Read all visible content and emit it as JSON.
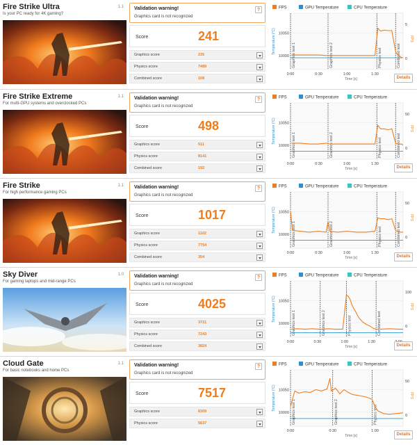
{
  "common": {
    "warning_title": "Validation warning!",
    "warning_text": "Graphics card is not recognized",
    "help_symbol": "?",
    "score_label": "Score",
    "details_label": "Details",
    "legend": [
      {
        "label": "FPS",
        "color": "#f07d1a"
      },
      {
        "label": "GPU Temperature",
        "color": "#2a8fd6"
      },
      {
        "label": "CPU Temperature",
        "color": "#2ec9c0"
      }
    ],
    "left_axis_label": "Temperature (°C)",
    "right_axis_label": "FPS",
    "x_axis_label": "Time [s]",
    "accent": "#f07d1a"
  },
  "benchmarks": [
    {
      "title": "Fire Strike Ultra",
      "subtitle": "Is your PC ready for 4K gaming?",
      "version": "1.1",
      "art": "fire",
      "score": "241",
      "subscores": [
        {
          "label": "Graphics score",
          "value": "235"
        },
        {
          "label": "Physics score",
          "value": "7489"
        },
        {
          "label": "Combined score",
          "value": "108"
        }
      ],
      "chart_data": {
        "type": "line",
        "x_ticks": [
          "0:00",
          "0:30",
          "1:00",
          "1:30"
        ],
        "x_range": [
          0,
          120
        ],
        "left_ticks": [
          "10050",
          "10000"
        ],
        "right_ticks": [
          "5",
          "0"
        ],
        "sections": [
          {
            "label": "Graphics test 1",
            "at": 0
          },
          {
            "label": "Graphics test 2",
            "at": 40
          },
          {
            "label": "Physics test",
            "at": 92
          },
          {
            "label": "Combined test",
            "at": 112
          }
        ],
        "fps_ylim": [
          -2,
          10
        ],
        "fps": [
          [
            1,
            1.1
          ],
          [
            10,
            1.1
          ],
          [
            20,
            1.1
          ],
          [
            30,
            1.1
          ],
          [
            38,
            1.0
          ],
          [
            42,
            1.0
          ],
          [
            50,
            1.0
          ],
          [
            60,
            1.0
          ],
          [
            70,
            1.0
          ],
          [
            80,
            1.0
          ],
          [
            90,
            1.0
          ],
          [
            93,
            6.8
          ],
          [
            96,
            6.2
          ],
          [
            100,
            6.4
          ],
          [
            104,
            6.3
          ],
          [
            108,
            6.3
          ],
          [
            112,
            1.8
          ],
          [
            114,
            1.2
          ],
          [
            118,
            0.6
          ],
          [
            120,
            0.5
          ]
        ],
        "gpu": [
          [
            0,
            0.5
          ],
          [
            120,
            0.5
          ]
        ],
        "cpu": [
          [
            0,
            0.5
          ],
          [
            120,
            0.5
          ]
        ]
      }
    },
    {
      "title": "Fire Strike Extreme",
      "subtitle": "For multi-GPU systems and overclocked PCs",
      "version": "1.1",
      "art": "fire",
      "score": "498",
      "subscores": [
        {
          "label": "Graphics score",
          "value": "511"
        },
        {
          "label": "Physics score",
          "value": "8141"
        },
        {
          "label": "Combined score",
          "value": "192"
        }
      ],
      "chart_data": {
        "type": "line",
        "x_ticks": [
          "0:00",
          "0:30",
          "1:00",
          "1:30"
        ],
        "x_range": [
          0,
          120
        ],
        "left_ticks": [
          "10050",
          "10000"
        ],
        "right_ticks": [
          "50",
          "0"
        ],
        "sections": [
          {
            "label": "Graphics test 1",
            "at": 0
          },
          {
            "label": "Graphics test 2",
            "at": 40
          },
          {
            "label": "Physics test",
            "at": 92
          },
          {
            "label": "Combined test",
            "at": 112
          }
        ],
        "fps_ylim": [
          -8,
          55
        ],
        "fps": [
          [
            1,
            10
          ],
          [
            10,
            10
          ],
          [
            20,
            9
          ],
          [
            30,
            9
          ],
          [
            38,
            10
          ],
          [
            42,
            9
          ],
          [
            50,
            9
          ],
          [
            60,
            9
          ],
          [
            70,
            9
          ],
          [
            80,
            9
          ],
          [
            90,
            9
          ],
          [
            93,
            30
          ],
          [
            96,
            26
          ],
          [
            100,
            26
          ],
          [
            104,
            25
          ],
          [
            108,
            26
          ],
          [
            112,
            10
          ],
          [
            114,
            9
          ],
          [
            118,
            9
          ],
          [
            120,
            8
          ]
        ],
        "gpu": [
          [
            0,
            1
          ],
          [
            120,
            1
          ]
        ],
        "cpu": [
          [
            0,
            1
          ],
          [
            120,
            1
          ]
        ]
      }
    },
    {
      "title": "Fire Strike",
      "subtitle": "For high performance gaming PCs",
      "version": "1.1",
      "art": "fire",
      "score": "1017",
      "subscores": [
        {
          "label": "Graphics score",
          "value": "1102"
        },
        {
          "label": "Physics score",
          "value": "7754"
        },
        {
          "label": "Combined score",
          "value": "354"
        }
      ],
      "chart_data": {
        "type": "line",
        "x_ticks": [
          "0:00",
          "0:30",
          "1:00",
          "1:30"
        ],
        "x_range": [
          0,
          120
        ],
        "left_ticks": [
          "10050",
          "10000"
        ],
        "right_ticks": [
          "50",
          "0"
        ],
        "sections": [
          {
            "label": "Graphics test 1",
            "at": 0
          },
          {
            "label": "Graphics test 2",
            "at": 40
          },
          {
            "label": "Physics test",
            "at": 92
          },
          {
            "label": "Combined test",
            "at": 112
          }
        ],
        "fps_ylim": [
          -8,
          55
        ],
        "fps": [
          [
            0,
            34
          ],
          [
            2,
            12
          ],
          [
            10,
            11
          ],
          [
            20,
            10
          ],
          [
            30,
            11
          ],
          [
            38,
            10
          ],
          [
            40,
            22
          ],
          [
            42,
            11
          ],
          [
            50,
            10
          ],
          [
            60,
            11
          ],
          [
            70,
            10
          ],
          [
            80,
            10
          ],
          [
            90,
            11
          ],
          [
            93,
            26
          ],
          [
            96,
            25
          ],
          [
            100,
            25
          ],
          [
            104,
            24
          ],
          [
            108,
            25
          ],
          [
            112,
            12
          ],
          [
            114,
            11
          ],
          [
            118,
            10
          ],
          [
            120,
            10
          ]
        ],
        "gpu": [
          [
            0,
            1
          ],
          [
            120,
            1
          ]
        ],
        "cpu": [
          [
            0,
            1
          ],
          [
            120,
            1
          ]
        ]
      }
    },
    {
      "title": "Sky Diver",
      "subtitle": "For gaming laptops and mid-range PCs",
      "version": "1.0",
      "art": "sky",
      "score": "4025",
      "subscores": [
        {
          "label": "Graphics score",
          "value": "3721"
        },
        {
          "label": "Physics score",
          "value": "7243"
        },
        {
          "label": "Combined score",
          "value": "3824"
        }
      ],
      "chart_data": {
        "type": "line",
        "x_ticks": [
          "0:00",
          "0:30",
          "1:00",
          "1:30",
          "2:00"
        ],
        "x_range": [
          0,
          125
        ],
        "left_ticks": [
          "10050",
          "10000"
        ],
        "right_ticks": [
          "100",
          "0"
        ],
        "sections": [
          {
            "label": "Graphics test 1",
            "at": 0
          },
          {
            "label": "Graphics test 2",
            "at": 33
          },
          {
            "label": "Physics test",
            "at": 62
          },
          {
            "label": "Combined test",
            "at": 95
          }
        ],
        "fps_ylim": [
          -10,
          130
        ],
        "fps": [
          [
            1,
            10
          ],
          [
            8,
            11
          ],
          [
            16,
            10
          ],
          [
            24,
            11
          ],
          [
            31,
            10
          ],
          [
            35,
            10
          ],
          [
            42,
            11
          ],
          [
            50,
            10
          ],
          [
            58,
            10
          ],
          [
            62,
            95
          ],
          [
            64,
            92
          ],
          [
            66,
            85
          ],
          [
            68,
            72
          ],
          [
            70,
            62
          ],
          [
            72,
            55
          ],
          [
            74,
            46
          ],
          [
            76,
            38
          ],
          [
            80,
            28
          ],
          [
            84,
            22
          ],
          [
            88,
            18
          ],
          [
            92,
            12
          ],
          [
            95,
            10
          ],
          [
            100,
            10
          ],
          [
            110,
            11
          ],
          [
            120,
            10
          ],
          [
            125,
            10
          ]
        ],
        "gpu": [
          [
            0,
            1
          ],
          [
            125,
            1
          ]
        ],
        "cpu": [
          [
            0,
            1
          ],
          [
            125,
            1
          ]
        ]
      }
    },
    {
      "title": "Cloud Gate",
      "subtitle": "For basic notebooks and home PCs",
      "version": "1.1",
      "art": "cloud",
      "score": "7517",
      "subscores": [
        {
          "label": "Graphics score",
          "value": "8309"
        },
        {
          "label": "Physics score",
          "value": "5637"
        }
      ],
      "chart_data": {
        "type": "line",
        "x_ticks": [
          "0:00",
          "0:30",
          "1:00"
        ],
        "x_range": [
          0,
          80
        ],
        "left_ticks": [
          "10050",
          "10000"
        ],
        "right_ticks": [
          "50",
          "0"
        ],
        "sections": [
          {
            "label": "Graphics test 1",
            "at": 0
          },
          {
            "label": "Graphics test 2",
            "at": 30
          },
          {
            "label": "Physics test",
            "at": 58
          }
        ],
        "fps_ylim": [
          -10,
          70
        ],
        "fps": [
          [
            0,
            18
          ],
          [
            3,
            40
          ],
          [
            6,
            37
          ],
          [
            10,
            39
          ],
          [
            14,
            38
          ],
          [
            18,
            42
          ],
          [
            22,
            40
          ],
          [
            26,
            43
          ],
          [
            28,
            58
          ],
          [
            29,
            40
          ],
          [
            32,
            44
          ],
          [
            35,
            36
          ],
          [
            38,
            42
          ],
          [
            41,
            38
          ],
          [
            44,
            35
          ],
          [
            47,
            34
          ],
          [
            50,
            33
          ],
          [
            53,
            32
          ],
          [
            56,
            30
          ],
          [
            58,
            28
          ],
          [
            60,
            18
          ],
          [
            62,
            12
          ],
          [
            66,
            8
          ],
          [
            70,
            7
          ],
          [
            75,
            8
          ],
          [
            80,
            9
          ]
        ],
        "gpu": [
          [
            0,
            1
          ],
          [
            80,
            1
          ]
        ],
        "cpu": [
          [
            0,
            1
          ],
          [
            80,
            1
          ]
        ]
      }
    }
  ]
}
